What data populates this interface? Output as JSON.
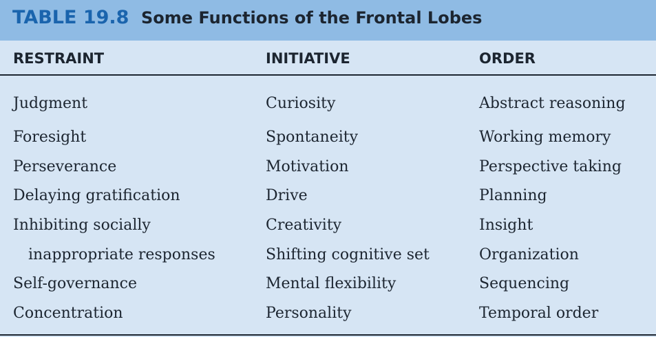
{
  "title": {
    "number": "TABLE 19.8",
    "text": "Some Functions of the Frontal Lobes"
  },
  "columns": [
    "RESTRAINT",
    "INITIATIVE",
    "ORDER"
  ],
  "rows": [
    [
      "Judgment",
      "Curiosity",
      "Abstract reasoning"
    ],
    [
      "Foresight",
      "Spontaneity",
      "Working memory"
    ],
    [
      "Perseverance",
      "Motivation",
      "Perspective taking"
    ],
    [
      "Delaying gratification",
      "Drive",
      "Planning"
    ],
    [
      "Inhibiting socially",
      "Creativity",
      "Insight"
    ],
    [
      "inappropriate responses",
      "Shifting cognitive set",
      "Organization"
    ],
    [
      "Self-governance",
      "Mental flexibility",
      "Sequencing"
    ],
    [
      "Concentration",
      "Personality",
      "Temporal order"
    ]
  ]
}
